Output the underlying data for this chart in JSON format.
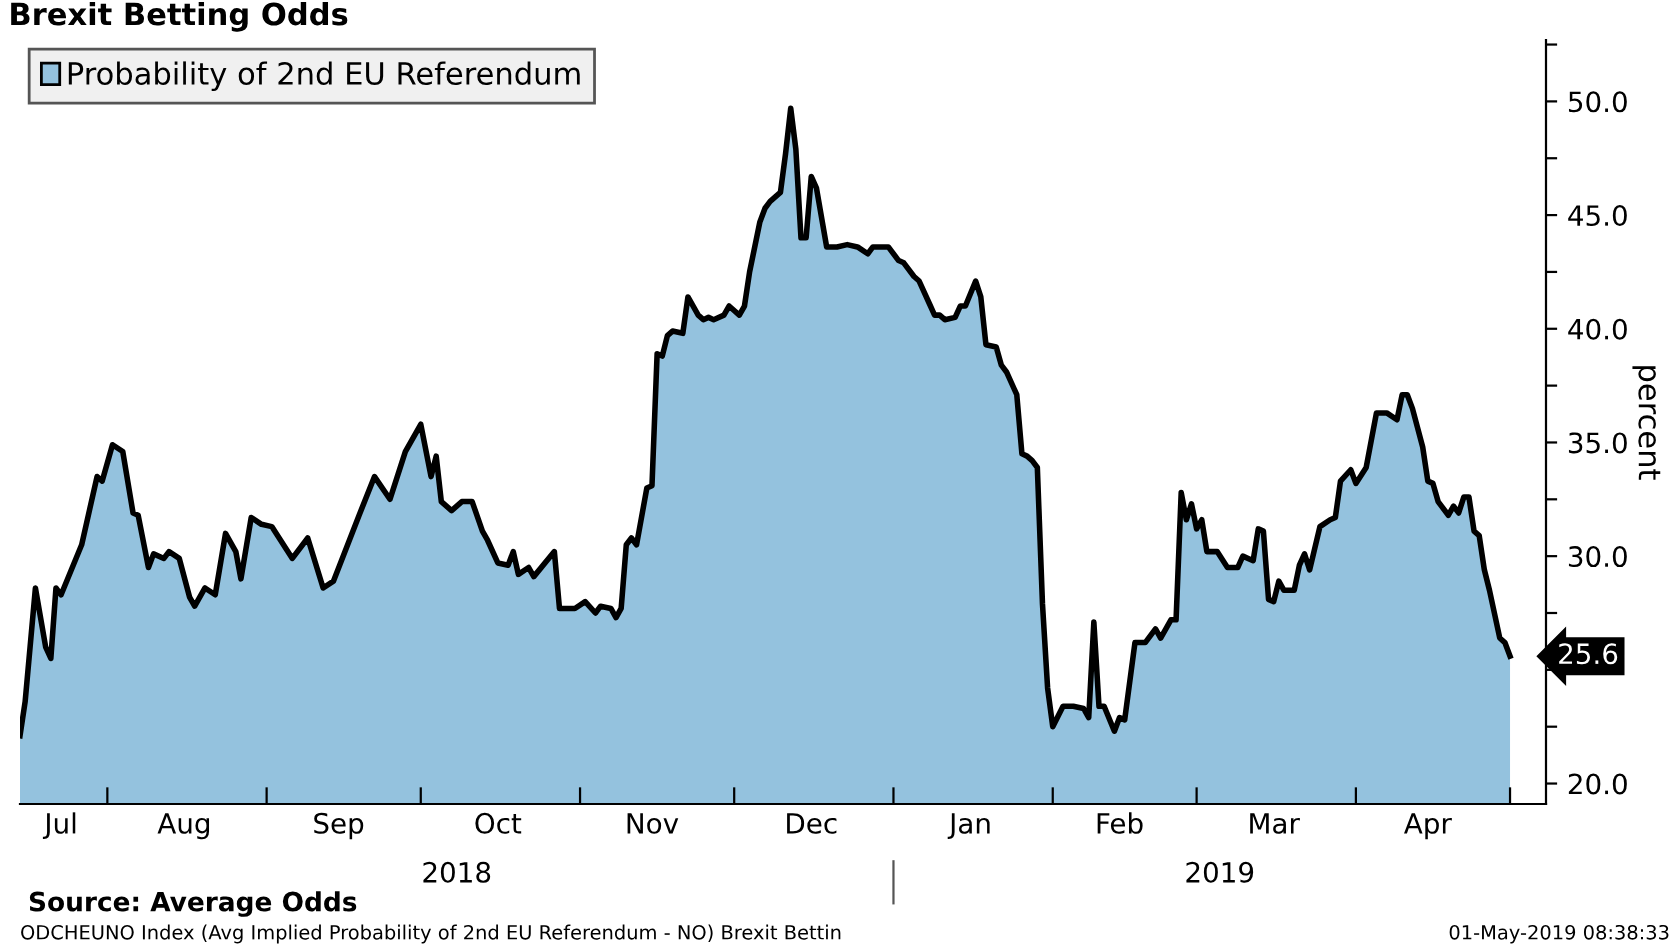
{
  "chart_data": {
    "type": "area",
    "title": "Brexit Betting Odds",
    "ylabel": "percent",
    "legend": "top left",
    "grid": false,
    "marker": "none",
    "line_style": "solid",
    "xlim": [
      "2018-07-15",
      "2019-05-08"
    ],
    "ylim": [
      19.1,
      52.7
    ],
    "xticks": [
      {
        "value": "2018-07-23",
        "label": "Jul"
      },
      {
        "value": "2018-08-01",
        "label": null
      },
      {
        "value": "2018-08-16",
        "label": "Aug"
      },
      {
        "value": "2018-09-01",
        "label": null
      },
      {
        "value": "2018-09-15",
        "label": "Sep"
      },
      {
        "value": "2018-10-01",
        "label": null
      },
      {
        "value": "2018-10-16",
        "label": "Oct"
      },
      {
        "value": "2018-11-01",
        "label": null
      },
      {
        "value": "2018-11-15",
        "label": "Nov"
      },
      {
        "value": "2018-12-01",
        "label": null
      },
      {
        "value": "2018-12-16",
        "label": "Dec"
      },
      {
        "value": "2019-01-01",
        "label": null
      },
      {
        "value": "2019-01-16",
        "label": "Jan"
      },
      {
        "value": "2019-02-01",
        "label": null
      },
      {
        "value": "2019-02-14",
        "label": "Feb"
      },
      {
        "value": "2019-03-01",
        "label": null
      },
      {
        "value": "2019-03-16",
        "label": "Mar"
      },
      {
        "value": "2019-04-01",
        "label": null
      },
      {
        "value": "2019-04-15",
        "label": "Apr"
      },
      {
        "value": "2019-05-01",
        "label": null
      }
    ],
    "yticks": [
      {
        "value": 20,
        "label": "20.0"
      },
      {
        "value": 22.5,
        "label": null
      },
      {
        "value": 25,
        "label": null
      },
      {
        "value": 27.5,
        "label": null
      },
      {
        "value": 30,
        "label": "30.0"
      },
      {
        "value": 32.5,
        "label": null
      },
      {
        "value": 35,
        "label": "35.0"
      },
      {
        "value": 37.5,
        "label": null
      },
      {
        "value": 40,
        "label": "40.0"
      },
      {
        "value": 42.5,
        "label": null
      },
      {
        "value": 45,
        "label": "45.0"
      },
      {
        "value": 47.5,
        "label": null
      },
      {
        "value": 50,
        "label": "50.0"
      },
      {
        "value": 52.5,
        "label": null
      }
    ],
    "annotations": [
      "2018",
      "2019",
      "Source: Average Odds",
      "ODCHEUNO Index (Avg Implied Probability of 2nd EU Referendum - NO) Brexit Bettin",
      "01-May-2019 08:38:33"
    ],
    "series": [
      {
        "name": "Probability of 2nd EU Referendum",
        "color": "#94c2de",
        "x": [
          "2018-07-15",
          "2018-07-16",
          "2018-07-18",
          "2018-07-20",
          "2018-07-21",
          "2018-07-22",
          "2018-07-23",
          "2018-07-27",
          "2018-07-28",
          "2018-07-30",
          "2018-07-31",
          "2018-08-02",
          "2018-08-04",
          "2018-08-06",
          "2018-08-07",
          "2018-08-09",
          "2018-08-10",
          "2018-08-12",
          "2018-08-13",
          "2018-08-15",
          "2018-08-17",
          "2018-08-18",
          "2018-08-20",
          "2018-08-22",
          "2018-08-24",
          "2018-08-26",
          "2018-08-27",
          "2018-08-29",
          "2018-08-31",
          "2018-09-02",
          "2018-09-06",
          "2018-09-09",
          "2018-09-12",
          "2018-09-14",
          "2018-09-19",
          "2018-09-22",
          "2018-09-25",
          "2018-09-28",
          "2018-10-01",
          "2018-10-03",
          "2018-10-04",
          "2018-10-05",
          "2018-10-07",
          "2018-10-09",
          "2018-10-11",
          "2018-10-13",
          "2018-10-14",
          "2018-10-16",
          "2018-10-18",
          "2018-10-19",
          "2018-10-20",
          "2018-10-22",
          "2018-10-23",
          "2018-10-27",
          "2018-10-28",
          "2018-10-30",
          "2018-10-31",
          "2018-11-02",
          "2018-11-04",
          "2018-11-05",
          "2018-11-07",
          "2018-11-08",
          "2018-11-09",
          "2018-11-10",
          "2018-11-11",
          "2018-11-12",
          "2018-11-14",
          "2018-11-15",
          "2018-11-16",
          "2018-11-17",
          "2018-11-18",
          "2018-11-19",
          "2018-11-21",
          "2018-11-22",
          "2018-11-24",
          "2018-11-25",
          "2018-11-26",
          "2018-11-27",
          "2018-11-29",
          "2018-11-30",
          "2018-12-02",
          "2018-12-03",
          "2018-12-04",
          "2018-12-06",
          "2018-12-07",
          "2018-12-08",
          "2018-12-10",
          "2018-12-11",
          "2018-12-12",
          "2018-12-13",
          "2018-12-14",
          "2018-12-15",
          "2018-12-16",
          "2018-12-17",
          "2018-12-19",
          "2018-12-21",
          "2018-12-23",
          "2018-12-25",
          "2018-12-27",
          "2018-12-28",
          "2018-12-31",
          "2019-01-02",
          "2019-01-03",
          "2019-01-05",
          "2019-01-06",
          "2019-01-08",
          "2019-01-09",
          "2019-01-10",
          "2019-01-11",
          "2019-01-13",
          "2019-01-14",
          "2019-01-15",
          "2019-01-17",
          "2019-01-18",
          "2019-01-19",
          "2019-01-21",
          "2019-01-22",
          "2019-01-23",
          "2019-01-25",
          "2019-01-26",
          "2019-01-27",
          "2019-01-28",
          "2019-01-29",
          "2019-01-30",
          "2019-01-31",
          "2019-02-01",
          "2019-02-03",
          "2019-02-05",
          "2019-02-07",
          "2019-02-08",
          "2019-02-09",
          "2019-02-10",
          "2019-02-11",
          "2019-02-13",
          "2019-02-14",
          "2019-02-15",
          "2019-02-17",
          "2019-02-19",
          "2019-02-21",
          "2019-02-22",
          "2019-02-24",
          "2019-02-25",
          "2019-02-26",
          "2019-02-27",
          "2019-02-28",
          "2019-03-01",
          "2019-03-02",
          "2019-03-03",
          "2019-03-05",
          "2019-03-07",
          "2019-03-09",
          "2019-03-10",
          "2019-03-12",
          "2019-03-13",
          "2019-03-14",
          "2019-03-15",
          "2019-03-16",
          "2019-03-17",
          "2019-03-18",
          "2019-03-20",
          "2019-03-21",
          "2019-03-22",
          "2019-03-23",
          "2019-03-25",
          "2019-03-27",
          "2019-03-28",
          "2019-03-29",
          "2019-03-31",
          "2019-04-01",
          "2019-04-03",
          "2019-04-05",
          "2019-04-07",
          "2019-04-09",
          "2019-04-10",
          "2019-04-11",
          "2019-04-12",
          "2019-04-14",
          "2019-04-15",
          "2019-04-16",
          "2019-04-17",
          "2019-04-19",
          "2019-04-20",
          "2019-04-21",
          "2019-04-22",
          "2019-04-23",
          "2019-04-24",
          "2019-04-25",
          "2019-04-26",
          "2019-04-27",
          "2019-04-29",
          "2019-04-30",
          "2019-05-01"
        ],
        "values": [
          22.1,
          23.6,
          28.6,
          26.0,
          25.5,
          28.6,
          28.3,
          30.5,
          31.5,
          33.5,
          33.3,
          34.9,
          34.6,
          31.9,
          31.8,
          29.5,
          30.1,
          29.9,
          30.2,
          29.9,
          28.2,
          27.8,
          28.6,
          28.3,
          31.0,
          30.2,
          29.0,
          31.7,
          31.4,
          31.3,
          29.9,
          30.8,
          28.6,
          28.9,
          31.8,
          33.5,
          32.5,
          34.6,
          35.8,
          33.5,
          34.4,
          32.4,
          32.0,
          32.4,
          32.4,
          31.1,
          30.7,
          29.7,
          29.6,
          30.2,
          29.2,
          29.5,
          29.1,
          30.2,
          27.7,
          27.7,
          27.7,
          28.0,
          27.5,
          27.8,
          27.7,
          27.3,
          27.7,
          30.5,
          30.8,
          30.5,
          33.0,
          33.1,
          38.9,
          38.8,
          39.7,
          39.9,
          39.8,
          41.4,
          40.6,
          40.4,
          40.5,
          40.4,
          40.6,
          41.0,
          40.6,
          41.0,
          42.5,
          44.7,
          45.3,
          45.6,
          46.0,
          47.7,
          49.7,
          47.9,
          44.0,
          44.0,
          46.7,
          46.2,
          43.6,
          43.6,
          43.7,
          43.6,
          43.3,
          43.6,
          43.6,
          43.0,
          42.9,
          42.3,
          42.1,
          41.1,
          40.6,
          40.6,
          40.4,
          40.5,
          41.0,
          41.0,
          42.1,
          41.4,
          39.3,
          39.2,
          38.4,
          38.1,
          37.1,
          34.5,
          34.4,
          34.2,
          33.9,
          27.9,
          24.2,
          22.5,
          23.4,
          23.4,
          23.3,
          22.9,
          27.1,
          23.4,
          23.4,
          22.3,
          22.9,
          22.8,
          26.2,
          26.2,
          26.8,
          26.4,
          27.2,
          27.2,
          32.8,
          31.6,
          32.3,
          31.2,
          31.6,
          30.2,
          30.2,
          29.5,
          29.5,
          30.0,
          29.8,
          31.2,
          31.1,
          28.1,
          28.0,
          28.9,
          28.5,
          28.5,
          29.6,
          30.1,
          29.4,
          31.3,
          31.6,
          31.7,
          33.3,
          33.8,
          33.2,
          33.9,
          36.3,
          36.3,
          36.0,
          37.1,
          37.1,
          36.5,
          34.8,
          33.3,
          33.2,
          32.4,
          31.8,
          32.2,
          31.9,
          32.6,
          32.6,
          31.1,
          30.9,
          29.4,
          28.5,
          26.4,
          26.2,
          25.6
        ],
        "value_labels": [
          null,
          null,
          null,
          null,
          null,
          null,
          null,
          null,
          null,
          null,
          null,
          null,
          null,
          null,
          null,
          null,
          null,
          null,
          null,
          null,
          null,
          null,
          null,
          null,
          null,
          null,
          null,
          null,
          null,
          null,
          null,
          null,
          null,
          null,
          null,
          null,
          null,
          null,
          null,
          null,
          null,
          null,
          null,
          null,
          null,
          null,
          null,
          null,
          null,
          null,
          null,
          null,
          null,
          null,
          null,
          null,
          null,
          null,
          null,
          null,
          null,
          null,
          null,
          null,
          null,
          null,
          null,
          null,
          null,
          null,
          null,
          null,
          null,
          null,
          null,
          null,
          null,
          null,
          null,
          null,
          null,
          null,
          null,
          null,
          null,
          null,
          null,
          null,
          null,
          null,
          null,
          null,
          null,
          null,
          null,
          null,
          null,
          null,
          null,
          null,
          null,
          null,
          null,
          null,
          null,
          null,
          null,
          null,
          null,
          null,
          null,
          null,
          null,
          null,
          null,
          null,
          null,
          null,
          null,
          null,
          null,
          null,
          null,
          null,
          null,
          null,
          null,
          null,
          null,
          null,
          null,
          null,
          null,
          null,
          null,
          null,
          null,
          null,
          null,
          null,
          null,
          null,
          null,
          null,
          null,
          null,
          null,
          null,
          null,
          null,
          null,
          null,
          null,
          null,
          null,
          null,
          null,
          null,
          null,
          null,
          null,
          null,
          null,
          null,
          null,
          null,
          null,
          null,
          null,
          null,
          null,
          null,
          null,
          null,
          null,
          null,
          null,
          null,
          null,
          null,
          null,
          null,
          null,
          null,
          null,
          null,
          null,
          null,
          null,
          null,
          null,
          "25.6"
        ]
      }
    ]
  }
}
